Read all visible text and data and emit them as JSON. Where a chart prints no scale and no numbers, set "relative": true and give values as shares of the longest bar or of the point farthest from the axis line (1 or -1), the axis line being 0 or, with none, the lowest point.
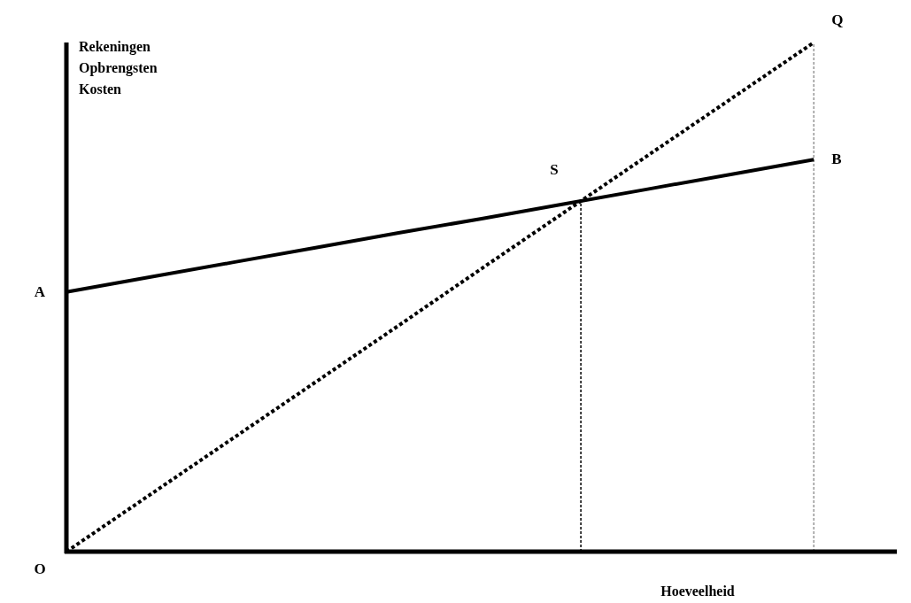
{
  "chart_data": {
    "type": "line",
    "relative": true,
    "ylabel": "Rekeningen\nOpbrengsten\nKosten",
    "xlabel": "Hoeveelheid",
    "categories": [
      null,
      null,
      null,
      null,
      null,
      null,
      null,
      null,
      null,
      null,
      null
    ],
    "series": [
      {
        "color": "#000000",
        "values": [
          0.51,
          0.539,
          0.568,
          0.597,
          0.626,
          0.654,
          0.683,
          0.712,
          0.741,
          0.77,
          null
        ],
        "line_style": "solid"
      },
      {
        "color": "#000000",
        "values": [
          0,
          0.111,
          0.222,
          0.333,
          0.444,
          0.556,
          0.667,
          0.778,
          0.889,
          1,
          null
        ],
        "line_style": "dotted"
      }
    ],
    "annotations": [
      "O",
      "A",
      "S",
      "B",
      "Q"
    ]
  }
}
